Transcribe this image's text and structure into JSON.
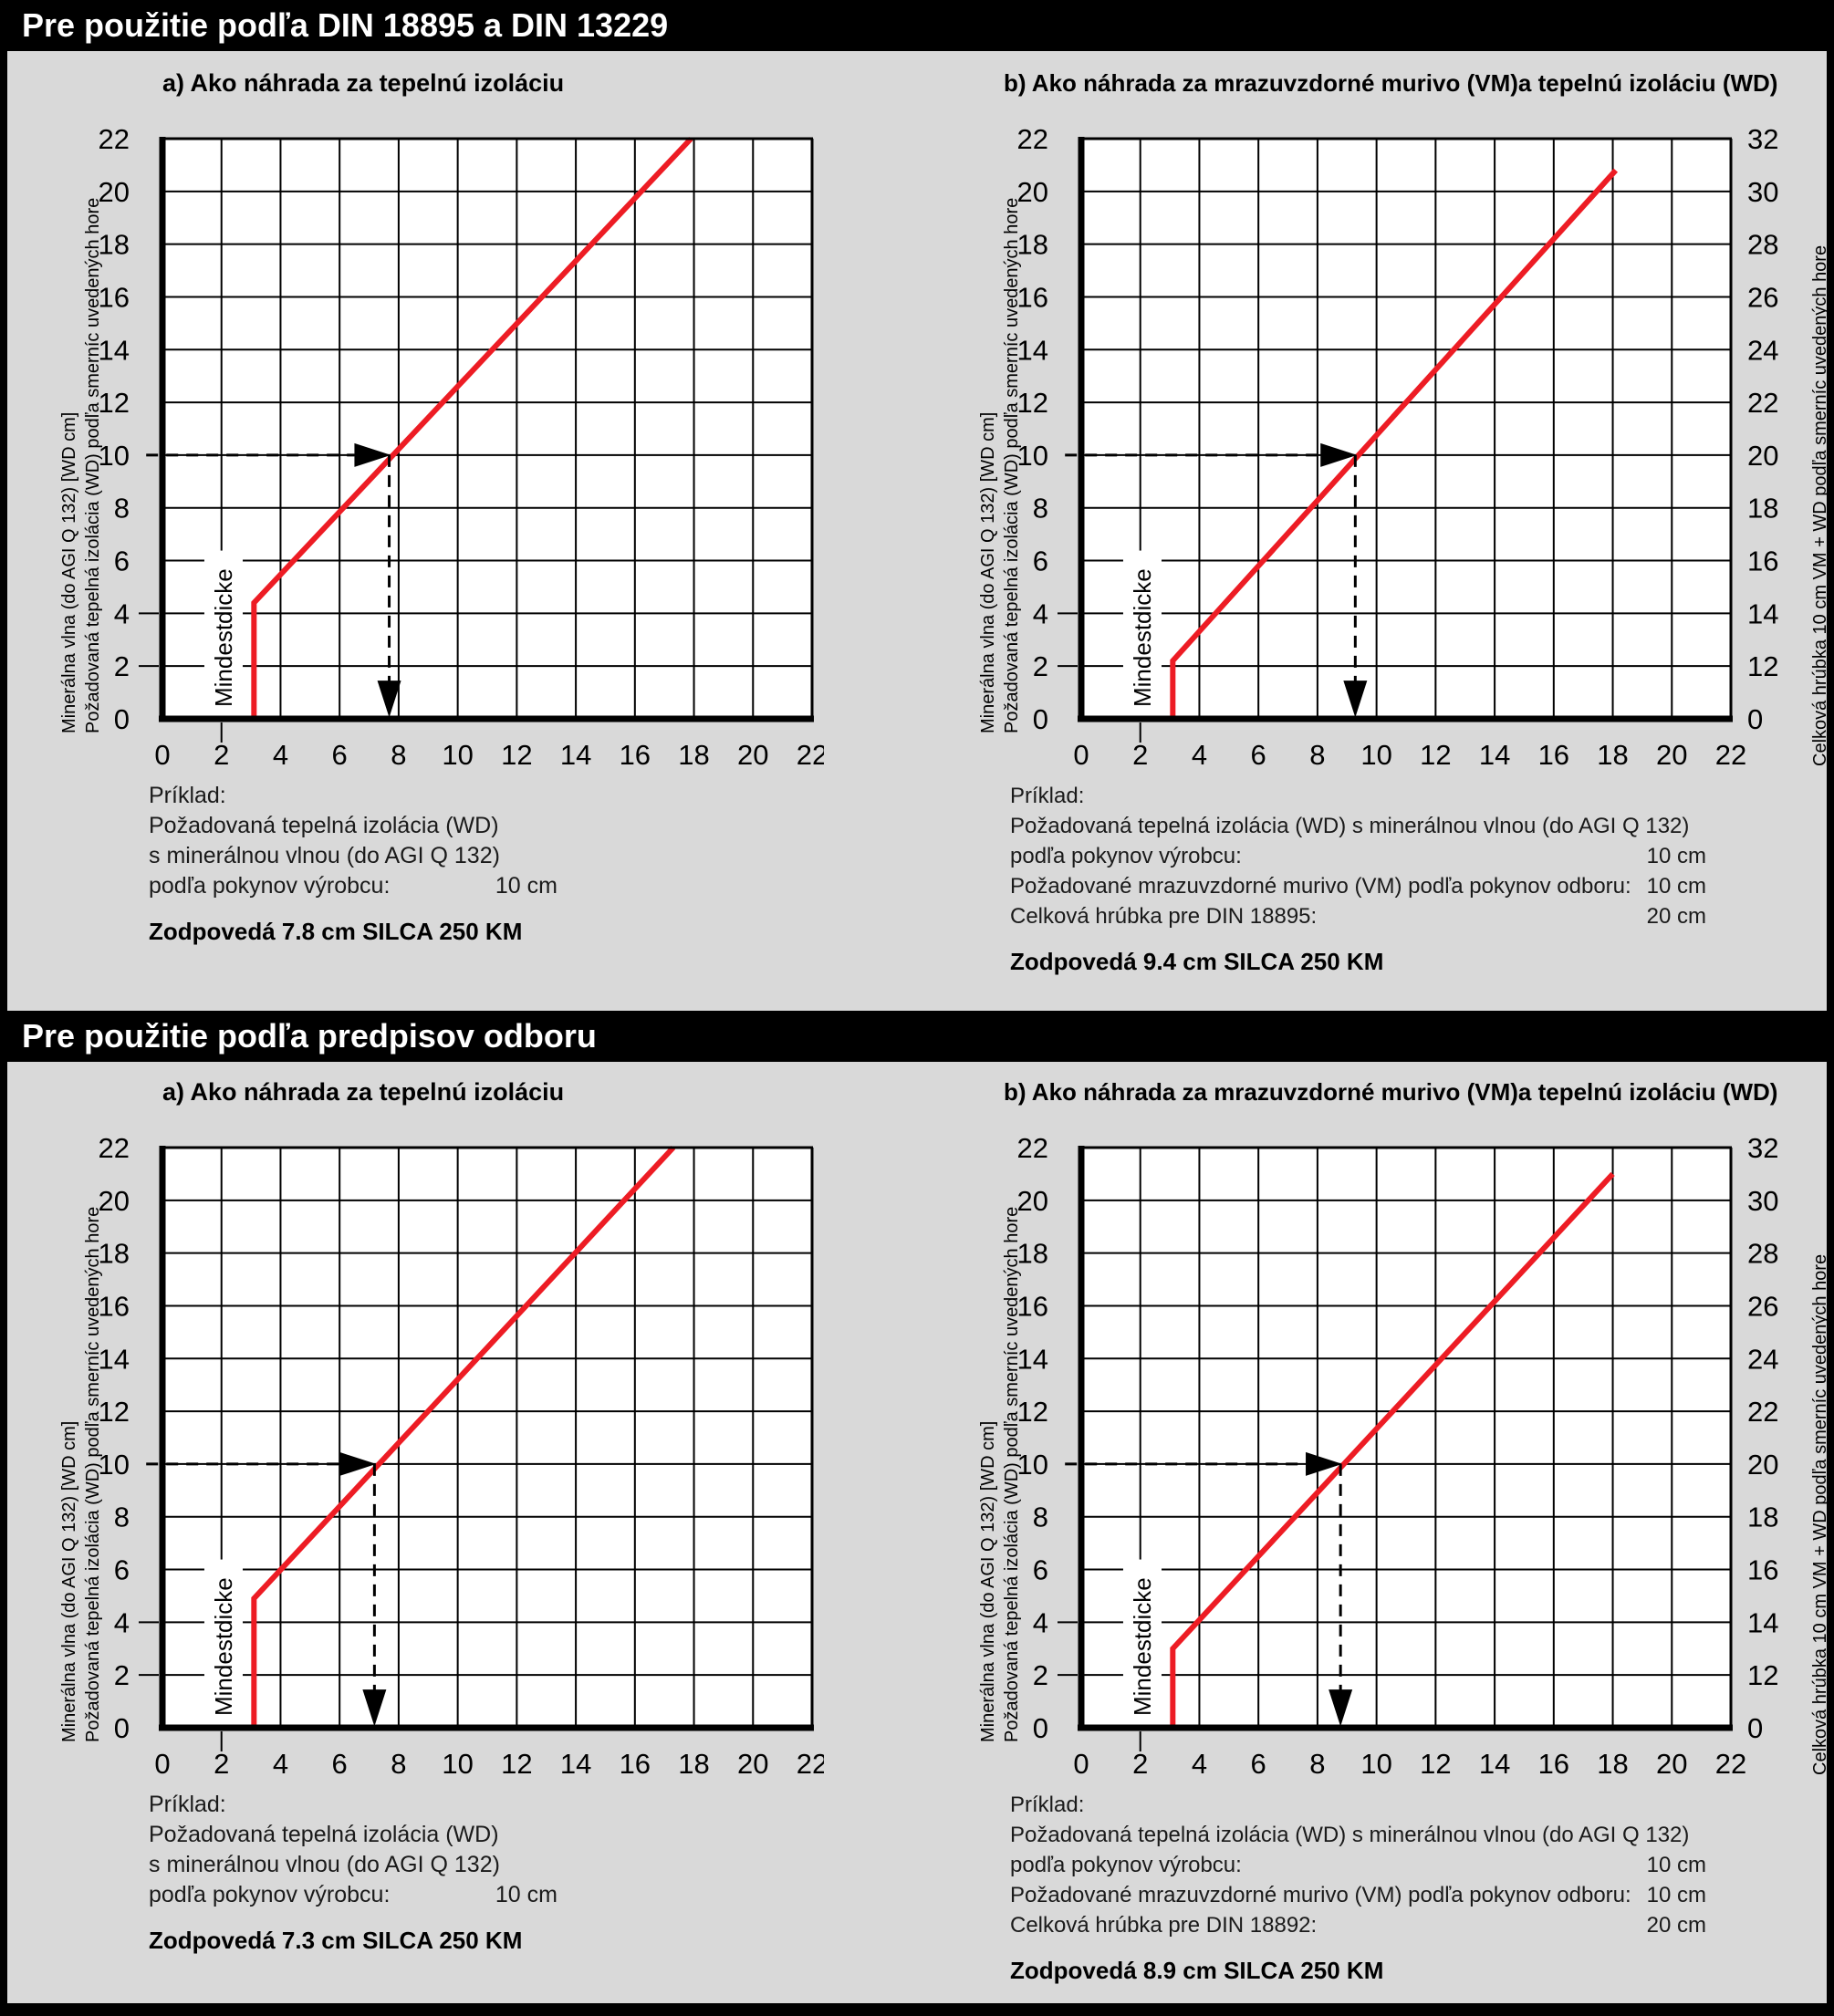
{
  "colors": {
    "background": "#d9d9d9",
    "plot_background": "#ffffff",
    "grid": "#000000",
    "red_line": "#ed1c24",
    "header_bg": "#000000",
    "header_text": "#ffffff"
  },
  "sections": [
    {
      "header": "Pre použitie podľa DIN 18895 a DIN 13229",
      "chart_indexes": [
        0,
        1
      ]
    },
    {
      "header": "Pre použitie podľa predpisov odboru",
      "chart_indexes": [
        2,
        3
      ]
    }
  ],
  "chart_data": [
    {
      "id": "chart-1a",
      "type": "line",
      "title": "a) Ako náhrada za tepelnú izoláciu",
      "ylabel_line1": "Minerálna vlna (do AGI Q 132) [WD cm]",
      "ylabel_line2": "Požadovaná tepelná izolácia (WD) podľa smerníc uvedených hore",
      "xlim": [
        0,
        22
      ],
      "ylim": [
        0,
        22
      ],
      "x_ticks": [
        "0",
        "2",
        "4",
        "6",
        "8",
        "10",
        "12",
        "14",
        "16",
        "18",
        "20",
        "22"
      ],
      "y_ticks": [
        "0",
        "2",
        "4",
        "6",
        "8",
        "10",
        "12",
        "14",
        "16",
        "18",
        "20",
        "22"
      ],
      "grid": true,
      "min_thickness_label": "Mindestdicke",
      "red_line_points": [
        [
          3.1,
          0
        ],
        [
          3.1,
          4.4
        ],
        [
          17.9,
          22
        ]
      ],
      "example_arrow": {
        "y": 10,
        "x": 7.8
      },
      "right_axis": null,
      "example": {
        "heading": "Príklad:",
        "rows": [
          {
            "label": "Požadovaná tepelná izolácia (WD)",
            "value": ""
          },
          {
            "label": "s minerálnou vlnou (do AGI Q 132)",
            "value": ""
          },
          {
            "label": "podľa pokynov výrobcu:",
            "value": "10 cm"
          }
        ],
        "result": "Zodpovedá 7.8 cm SILCA 250 KM"
      }
    },
    {
      "id": "chart-1b",
      "type": "line",
      "title": "b) Ako náhrada za mrazuvzdorné murivo (VM)a tepelnú izoláciu (WD)",
      "ylabel_line1": "Minerálna vlna (do AGI Q 132) [WD cm]",
      "ylabel_line2": "Požadovaná tepelná izolácia (WD) podľa smerníc uvedených hore",
      "xlim": [
        0,
        22
      ],
      "ylim": [
        0,
        22
      ],
      "x_ticks": [
        "0",
        "2",
        "4",
        "6",
        "8",
        "10",
        "12",
        "14",
        "16",
        "18",
        "20",
        "22"
      ],
      "y_ticks": [
        "0",
        "2",
        "4",
        "6",
        "8",
        "10",
        "12",
        "14",
        "16",
        "18",
        "20",
        "22"
      ],
      "grid": true,
      "min_thickness_label": "Mindestdicke",
      "red_line_points": [
        [
          3.1,
          0
        ],
        [
          3.1,
          2.2
        ],
        [
          18.1,
          20.8
        ]
      ],
      "example_arrow": {
        "y": 10,
        "x": 9.4
      },
      "right_axis": {
        "labels": [
          "0",
          "12",
          "14",
          "16",
          "18",
          "20",
          "22",
          "24",
          "26",
          "28",
          "30",
          "32"
        ],
        "label_y_positions": [
          0,
          2,
          4,
          6,
          8,
          10,
          12,
          14,
          16,
          18,
          20,
          22
        ],
        "title": "Celková hrúbka 10 cm VM + WD podľa smerníc uvedených hore"
      },
      "example": {
        "heading": "Príklad:",
        "rows": [
          {
            "label": "Požadovaná tepelná izolácia (WD) s minerálnou vlnou (do AGI Q 132)",
            "value": ""
          },
          {
            "label": "podľa pokynov výrobcu:",
            "value": "10 cm"
          },
          {
            "label": "Požadované mrazuvzdorné murivo (VM) podľa pokynov odboru:",
            "value": "10 cm"
          },
          {
            "label": "Celková hrúbka pre DIN 18895:",
            "value": "20 cm"
          }
        ],
        "result": "Zodpovedá 9.4 cm SILCA 250 KM"
      }
    },
    {
      "id": "chart-2a",
      "type": "line",
      "title": "a) Ako náhrada za tepelnú izoláciu",
      "ylabel_line1": "Minerálna vlna (do AGI Q 132) [WD cm]",
      "ylabel_line2": "Požadovaná tepelná izolácia (WD) podľa smerníc uvedených hore",
      "xlim": [
        0,
        22
      ],
      "ylim": [
        0,
        22
      ],
      "x_ticks": [
        "0",
        "2",
        "4",
        "6",
        "8",
        "10",
        "12",
        "14",
        "16",
        "18",
        "20",
        "22"
      ],
      "y_ticks": [
        "0",
        "2",
        "4",
        "6",
        "8",
        "10",
        "12",
        "14",
        "16",
        "18",
        "20",
        "22"
      ],
      "grid": true,
      "min_thickness_label": "Mindestdicke",
      "red_line_points": [
        [
          3.1,
          0
        ],
        [
          3.1,
          4.9
        ],
        [
          17.3,
          22
        ]
      ],
      "example_arrow": {
        "y": 10,
        "x": 7.3
      },
      "right_axis": null,
      "example": {
        "heading": "Príklad:",
        "rows": [
          {
            "label": "Požadovaná tepelná izolácia (WD)",
            "value": ""
          },
          {
            "label": "s minerálnou vlnou (do AGI Q 132)",
            "value": ""
          },
          {
            "label": "podľa pokynov výrobcu:",
            "value": "10 cm"
          }
        ],
        "result": "Zodpovedá 7.3 cm SILCA 250 KM"
      }
    },
    {
      "id": "chart-2b",
      "type": "line",
      "title": "b) Ako náhrada za mrazuvzdorné murivo (VM)a tepelnú izoláciu (WD)",
      "ylabel_line1": "Minerálna vlna (do AGI Q 132) [WD cm]",
      "ylabel_line2": "Požadovaná tepelná izolácia (WD) podľa smerníc uvedených hore",
      "xlim": [
        0,
        22
      ],
      "ylim": [
        0,
        22
      ],
      "x_ticks": [
        "0",
        "2",
        "4",
        "6",
        "8",
        "10",
        "12",
        "14",
        "16",
        "18",
        "20",
        "22"
      ],
      "y_ticks": [
        "0",
        "2",
        "4",
        "6",
        "8",
        "10",
        "12",
        "14",
        "16",
        "18",
        "20",
        "22"
      ],
      "grid": true,
      "min_thickness_label": "Mindestdicke",
      "red_line_points": [
        [
          3.1,
          0
        ],
        [
          3.1,
          3.0
        ],
        [
          18.0,
          21.0
        ]
      ],
      "example_arrow": {
        "y": 10,
        "x": 8.9
      },
      "right_axis": {
        "labels": [
          "0",
          "12",
          "14",
          "16",
          "18",
          "20",
          "22",
          "24",
          "26",
          "28",
          "30",
          "32"
        ],
        "label_y_positions": [
          0,
          2,
          4,
          6,
          8,
          10,
          12,
          14,
          16,
          18,
          20,
          22
        ],
        "title": "Celková hrúbka 10 cm VM + WD podľa smerníc uvedených hore"
      },
      "example": {
        "heading": "Príklad:",
        "rows": [
          {
            "label": "Požadovaná tepelná izolácia (WD) s minerálnou vlnou (do AGI Q 132)",
            "value": ""
          },
          {
            "label": "podľa pokynov výrobcu:",
            "value": "10 cm"
          },
          {
            "label": "Požadované mrazuvzdorné murivo (VM) podľa pokynov odboru:",
            "value": "10 cm"
          },
          {
            "label": "Celková hrúbka pre DIN 18892:",
            "value": "20 cm"
          }
        ],
        "result": "Zodpovedá 8.9 cm SILCA 250 KM"
      }
    }
  ]
}
